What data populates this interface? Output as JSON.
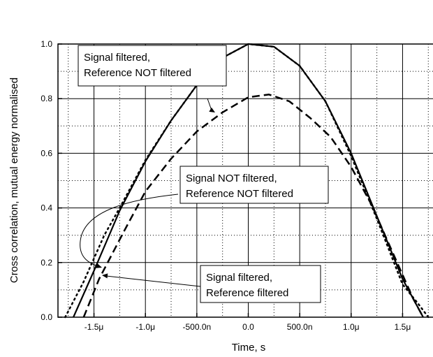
{
  "chart_data": {
    "type": "line",
    "title": "",
    "xlabel": "Time, s",
    "ylabel": "Cross correlation, mutual energy normalised",
    "xlim": [
      -1.85e-06,
      1.85e-06
    ],
    "ylim": [
      0.0,
      1.0
    ],
    "x_ticks": [
      -1.5e-06,
      -1e-06,
      -5e-07,
      0,
      5e-07,
      1e-06,
      1.5e-06
    ],
    "x_tick_labels": [
      "-1.5μ",
      "-1.0μ",
      "-500.0n",
      "0.0",
      "500.0n",
      "1.0μ",
      "1.5μ"
    ],
    "y_ticks": [
      0.0,
      0.2,
      0.4,
      0.6,
      0.8,
      1.0
    ],
    "y_tick_labels": [
      "0.0",
      "0.2",
      "0.4",
      "0.6",
      "0.8",
      "1.0"
    ],
    "grid": true,
    "series": [
      {
        "style": "solid",
        "x": [
          -1.7e-06,
          -1.5e-06,
          -1.25e-06,
          -1e-06,
          -7.5e-07,
          -5e-07,
          -2.5e-07,
          0,
          2.5e-07,
          5e-07,
          7.5e-07,
          1e-06,
          1.25e-06,
          1.5e-06,
          1.7e-06
        ],
        "y": [
          0.0,
          0.17,
          0.39,
          0.57,
          0.72,
          0.85,
          0.95,
          1.0,
          0.99,
          0.92,
          0.79,
          0.6,
          0.37,
          0.14,
          0.0
        ]
      },
      {
        "style": "dashed",
        "x": [
          -1.6e-06,
          -1.45e-06,
          -1.2e-06,
          -1e-06,
          -7.5e-07,
          -5e-07,
          -2.5e-07,
          0,
          2e-07,
          4e-07,
          6e-07,
          8e-07,
          1e-06,
          1.2e-06,
          1.4e-06,
          1.6e-06,
          1.7e-06
        ],
        "y": [
          0.0,
          0.14,
          0.32,
          0.46,
          0.58,
          0.68,
          0.75,
          0.805,
          0.815,
          0.79,
          0.73,
          0.66,
          0.55,
          0.41,
          0.24,
          0.07,
          0.0
        ]
      },
      {
        "style": "dotted",
        "x": [
          -1.78e-06,
          -1.6e-06,
          -1.4e-06,
          -1.25e-06,
          -1e-06,
          -7.5e-07,
          -5e-07,
          -2.5e-07,
          0,
          2.5e-07,
          5e-07,
          7.5e-07,
          1e-06,
          1.25e-06,
          1.5e-06,
          1.65e-06,
          1.75e-06
        ],
        "y": [
          0.0,
          0.13,
          0.3,
          0.4,
          0.575,
          0.72,
          0.85,
          0.95,
          1.0,
          0.99,
          0.92,
          0.79,
          0.59,
          0.36,
          0.12,
          0.05,
          0.0
        ]
      }
    ],
    "annotations": [
      {
        "lines": [
          "Signal filtered,",
          "Reference NOT filtered"
        ]
      },
      {
        "lines": [
          "Signal NOT filtered,",
          "Reference NOT filtered"
        ]
      },
      {
        "lines": [
          "Signal filtered,",
          "Reference filtered"
        ]
      }
    ]
  }
}
